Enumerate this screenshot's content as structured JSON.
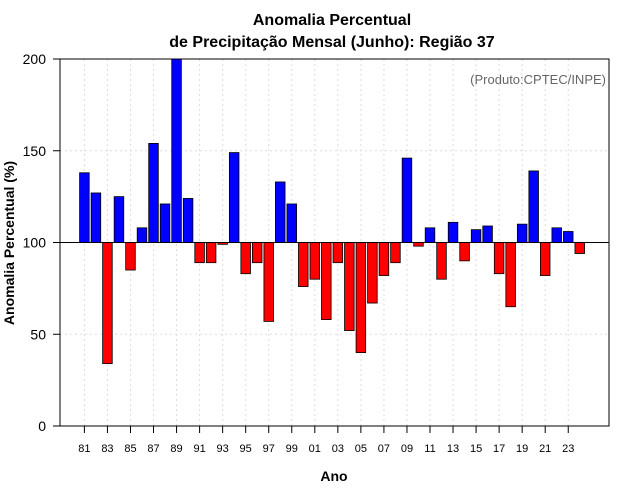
{
  "chart_data": {
    "type": "bar",
    "title_line1": "Anomalia Percentual",
    "title_line2": "de Precipitação Mensal (Junho): Região 37",
    "credit": "(Produto:CPTEC/INPE)",
    "xlabel": "Ano",
    "ylabel": "Anomalia Percentual (%)",
    "ylim": [
      0,
      200
    ],
    "baseline": 100,
    "yticks": [
      0,
      50,
      100,
      150,
      200
    ],
    "categories": [
      "81",
      "82",
      "83",
      "84",
      "85",
      "86",
      "87",
      "88",
      "89",
      "90",
      "91",
      "92",
      "93",
      "94",
      "95",
      "96",
      "97",
      "98",
      "99",
      "00",
      "01",
      "02",
      "03",
      "04",
      "05",
      "06",
      "07",
      "08",
      "09",
      "10",
      "11",
      "12",
      "13",
      "14",
      "15",
      "16",
      "17",
      "18",
      "19",
      "20",
      "21",
      "22",
      "23",
      "24"
    ],
    "xtick_labels": [
      "81",
      "83",
      "85",
      "87",
      "89",
      "91",
      "93",
      "95",
      "97",
      "99",
      "01",
      "03",
      "05",
      "07",
      "09",
      "11",
      "13",
      "15",
      "17",
      "19",
      "21",
      "23"
    ],
    "values": [
      138,
      127,
      34,
      125,
      85,
      108,
      154,
      121,
      200,
      124,
      89,
      89,
      99,
      149,
      83,
      89,
      57,
      133,
      121,
      76,
      80,
      58,
      89,
      52,
      40,
      67,
      82,
      89,
      146,
      98,
      108,
      80,
      111,
      90,
      107,
      109,
      83,
      65,
      110,
      139,
      82,
      108,
      106,
      94
    ],
    "colors": {
      "above": "#0000ff",
      "below": "#ff0000",
      "grid": "#dddddd",
      "axis": "#000000"
    },
    "grid": true
  }
}
